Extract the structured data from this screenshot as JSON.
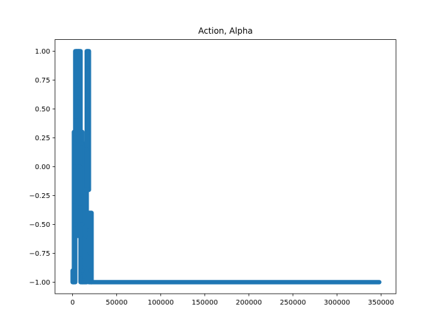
{
  "chart_data": {
    "type": "scatter",
    "title": "Action, Alpha",
    "xlabel": "",
    "ylabel": "",
    "xlim": [
      -20000,
      367000
    ],
    "ylim": [
      -1.1,
      1.1
    ],
    "xticks": [
      0,
      50000,
      100000,
      150000,
      200000,
      250000,
      300000,
      350000
    ],
    "xtick_labels": [
      "0",
      "50000",
      "100000",
      "150000",
      "200000",
      "250000",
      "300000",
      "350000"
    ],
    "yticks": [
      -1.0,
      -0.75,
      -0.5,
      -0.25,
      0.0,
      0.25,
      0.5,
      0.75,
      1.0
    ],
    "ytick_labels": [
      "−1.00",
      "−0.75",
      "−0.50",
      "−0.25",
      "0.00",
      "0.25",
      "0.50",
      "0.75",
      "1.00"
    ],
    "grid": false,
    "legend": "none",
    "series": [
      {
        "color": "#1f77b4",
        "dense_columns": [
          {
            "x_range": [
              0,
              1500
            ],
            "y_range": [
              -1.0,
              -0.9
            ]
          },
          {
            "x_range": [
              1500,
              3000
            ],
            "y_range": [
              -1.0,
              0.3
            ]
          },
          {
            "x_range": [
              3000,
              5000
            ],
            "y_range": [
              -0.6,
              1.0
            ]
          },
          {
            "x_range": [
              5000,
              7000
            ],
            "y_range": [
              0.5,
              1.0
            ]
          },
          {
            "x_range": [
              7000,
              9000
            ],
            "y_range": [
              -0.6,
              1.0
            ]
          },
          {
            "x_range": [
              9000,
              11000
            ],
            "y_range": [
              -1.0,
              0.3
            ]
          },
          {
            "x_range": [
              11000,
              14000
            ],
            "y_range": [
              -1.0,
              -0.75
            ]
          },
          {
            "x_range": [
              14000,
              16000
            ],
            "y_range": [
              -1.0,
              0.2
            ]
          },
          {
            "x_range": [
              16000,
              18500
            ],
            "y_range": [
              -0.2,
              1.0
            ]
          },
          {
            "x_range": [
              18500,
              21500
            ],
            "y_range": [
              -1.0,
              -0.4
            ]
          }
        ],
        "sample_points": [
          [
            800,
            -1.0
          ],
          [
            1200,
            -0.9
          ],
          [
            1800,
            -0.55
          ],
          [
            2000,
            -0.3
          ],
          [
            2200,
            0.0
          ],
          [
            2500,
            0.2
          ],
          [
            3200,
            -0.5
          ],
          [
            3500,
            0.25
          ],
          [
            3800,
            0.4
          ],
          [
            4200,
            0.7
          ],
          [
            4500,
            0.9
          ],
          [
            4800,
            1.0
          ],
          [
            5200,
            0.95
          ],
          [
            5600,
            0.7
          ],
          [
            6000,
            0.85
          ],
          [
            6500,
            0.6
          ],
          [
            7000,
            1.0
          ],
          [
            7400,
            0.55
          ],
          [
            7800,
            0.3
          ],
          [
            8200,
            0.0
          ],
          [
            8600,
            -0.35
          ],
          [
            9000,
            -0.6
          ],
          [
            9400,
            -0.8
          ],
          [
            9800,
            -0.25
          ],
          [
            10200,
            0.2
          ],
          [
            10600,
            -0.5
          ],
          [
            11000,
            -0.9
          ],
          [
            11500,
            -0.95
          ],
          [
            12000,
            -1.0
          ],
          [
            13000,
            -0.95
          ],
          [
            14000,
            -0.85
          ],
          [
            14500,
            -0.6
          ],
          [
            15000,
            -0.2
          ],
          [
            15500,
            0.15
          ],
          [
            16000,
            0.5
          ],
          [
            16500,
            0.85
          ],
          [
            17000,
            1.0
          ],
          [
            17500,
            0.65
          ],
          [
            18000,
            0.3
          ],
          [
            18500,
            -0.2
          ],
          [
            19000,
            -0.55
          ],
          [
            19500,
            -0.75
          ],
          [
            20000,
            -0.9
          ],
          [
            21000,
            -1.0
          ]
        ],
        "baseline": {
          "x_range": [
            21500,
            348000
          ],
          "y": -1.0
        }
      }
    ]
  }
}
